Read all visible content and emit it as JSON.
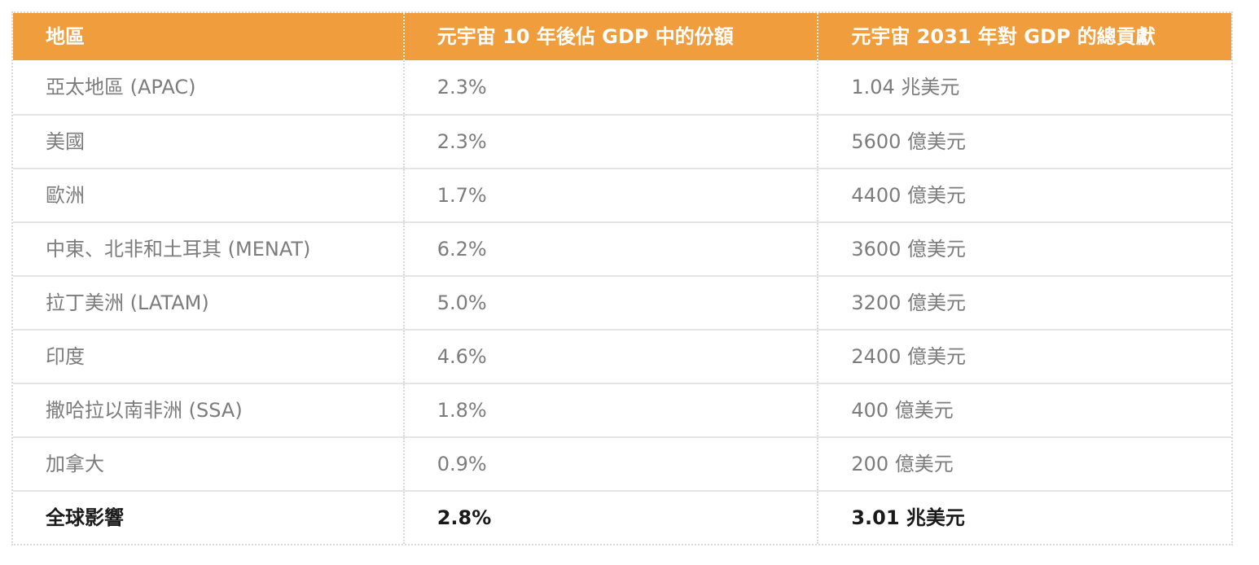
{
  "chart_data": {
    "type": "table",
    "title": "",
    "columns": [
      "地區",
      "元宇宙 10 年後佔 GDP 中的份額",
      "元宇宙 2031 年對 GDP 的總貢獻"
    ],
    "categories": [
      "亞太地區 (APAC)",
      "美國",
      "歐洲",
      "中東、北非和土耳其 (MENAT)",
      "拉丁美洲 (LATAM)",
      "印度",
      "撒哈拉以南非洲 (SSA)",
      "加拿大",
      "全球影響"
    ],
    "series": [
      {
        "name": "元宇宙 10 年後佔 GDP 中的份額 (%)",
        "values": [
          2.3,
          2.3,
          1.7,
          6.2,
          5.0,
          4.6,
          1.8,
          0.9,
          2.8
        ]
      },
      {
        "name": "元宇宙 2031 年對 GDP 的總貢獻 (十億美元)",
        "values": [
          1040,
          560,
          440,
          360,
          320,
          240,
          40,
          20,
          3010
        ]
      }
    ],
    "rows": [
      [
        "亞太地區 (APAC)",
        "2.3%",
        "1.04 兆美元"
      ],
      [
        "美國",
        "2.3%",
        "5600 億美元"
      ],
      [
        "歐洲",
        "1.7%",
        "4400 億美元"
      ],
      [
        "中東、北非和土耳其 (MENAT)",
        "6.2%",
        "3600 億美元"
      ],
      [
        "拉丁美洲 (LATAM)",
        "5.0%",
        "3200 億美元"
      ],
      [
        "印度",
        "4.6%",
        "2400 億美元"
      ],
      [
        "撒哈拉以南非洲 (SSA)",
        "1.8%",
        "400 億美元"
      ],
      [
        "加拿大",
        "0.9%",
        "200 億美元"
      ],
      [
        "全球影響",
        "2.8%",
        "3.01 兆美元"
      ]
    ],
    "total_row_index": 8,
    "legend_position": "none",
    "grid": "row-lines-and-dotted-column-dividers"
  },
  "colors": {
    "header_bg": "#F09E3D",
    "header_text": "#FFFFFF",
    "header_divider": "rgba(255,255,255,0.85)",
    "body_text": "#7C7C7C",
    "total_text": "#1A1A1A",
    "row_line": "#E5E5E5",
    "border_dotted": "#D9D9D9",
    "page_bg": "#FFFFFF"
  }
}
